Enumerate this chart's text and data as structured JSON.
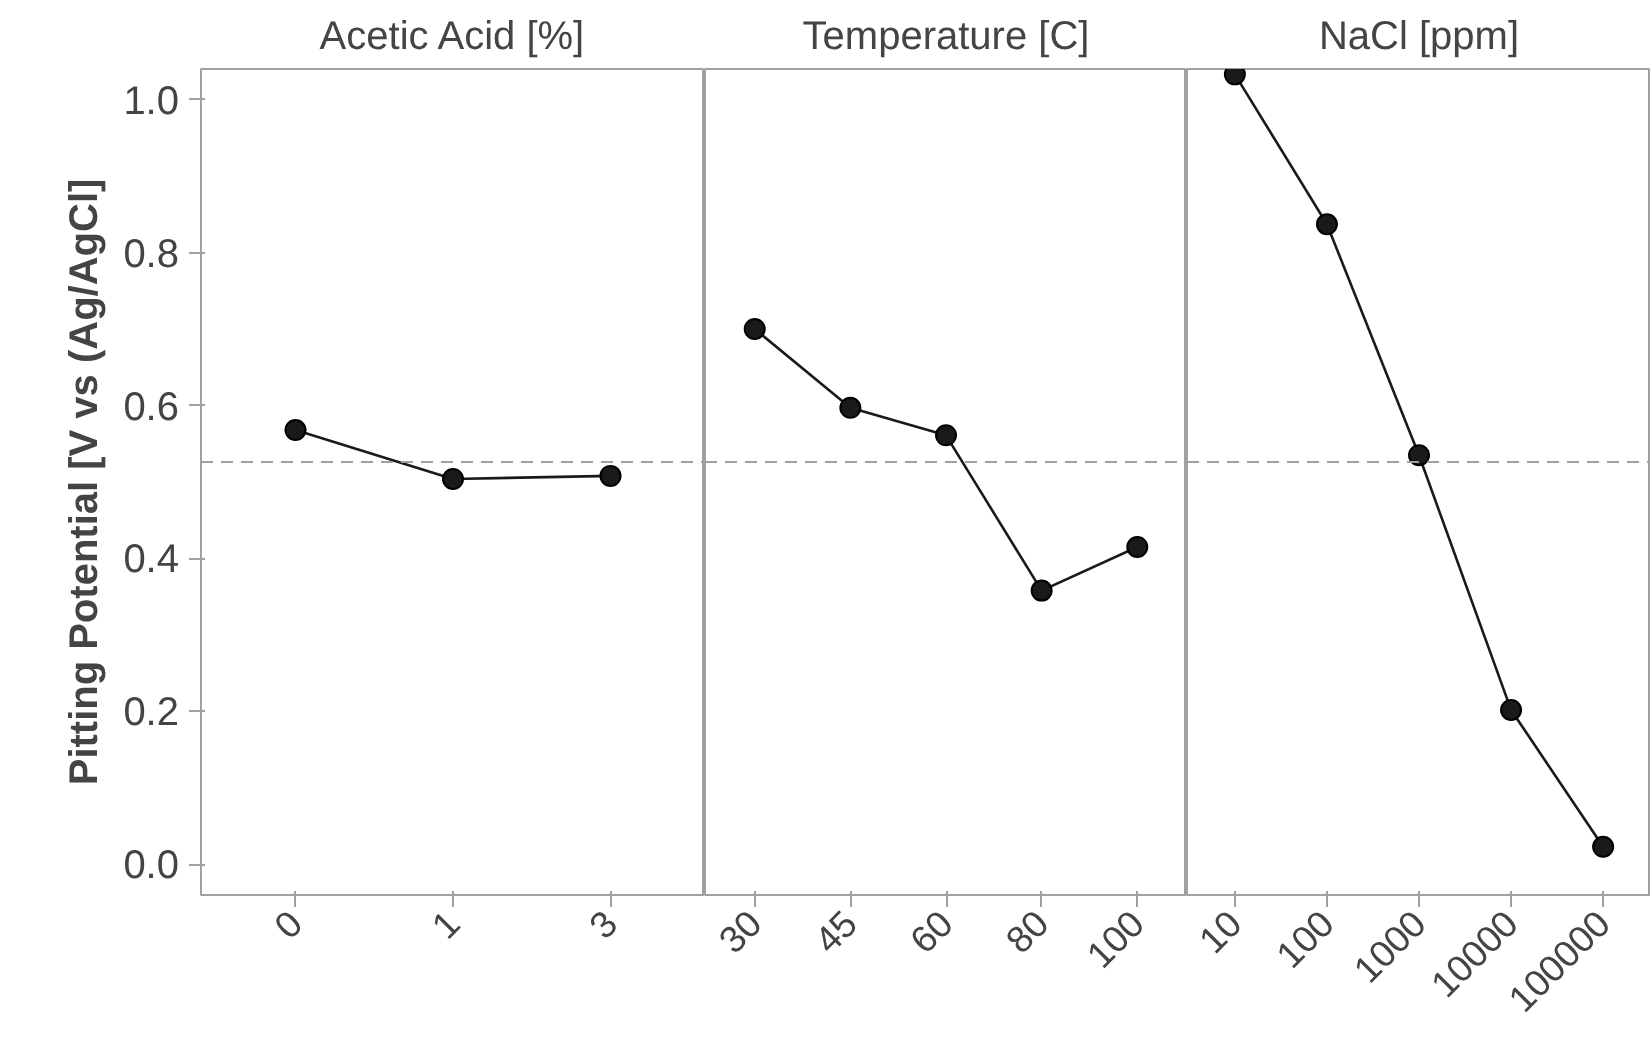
{
  "chart_data": [
    {
      "type": "line",
      "title": "Acetic Acid [%]",
      "ylabel": "Pitting Potential [V vs (Ag/AgCl]",
      "categories": [
        "0",
        "1",
        "3"
      ],
      "series": [
        {
          "color": "#1a1a1a",
          "values": [
            0.568,
            0.504,
            0.508
          ]
        }
      ],
      "ylim": [
        -0.04,
        1.04
      ],
      "yticks": [
        {
          "value": 0,
          "label": "0.0"
        },
        {
          "value": 0.2,
          "label": "0.2"
        },
        {
          "value": 0.4,
          "label": "0.4"
        },
        {
          "value": 0.6,
          "label": "0.6"
        },
        {
          "value": 0.8,
          "label": "0.8"
        },
        {
          "value": 1,
          "label": "1.0"
        }
      ],
      "ref_lines": [
        {
          "axis": "y",
          "value": 0.526,
          "color": "#a0a0a0",
          "line_style": "dashed"
        }
      ],
      "marker": "circle"
    },
    {
      "type": "line",
      "title": "Temperature [C]",
      "categories": [
        "30",
        "45",
        "60",
        "80",
        "100"
      ],
      "series": [
        {
          "color": "#1a1a1a",
          "values": [
            0.7,
            0.597,
            0.561,
            0.358,
            0.415
          ]
        }
      ],
      "ylim": [
        -0.04,
        1.04
      ],
      "tick_labels": "x",
      "ref_lines": [
        {
          "axis": "y",
          "value": 0.526,
          "color": "#a0a0a0",
          "line_style": "dashed"
        }
      ],
      "marker": "circle"
    },
    {
      "type": "line",
      "title": "NaCl [ppm]",
      "categories": [
        "10",
        "100",
        "1000",
        "10000",
        "100000"
      ],
      "series": [
        {
          "color": "#1a1a1a",
          "values": [
            1.033,
            0.837,
            0.535,
            0.202,
            0.023
          ]
        }
      ],
      "ylim": [
        -0.04,
        1.04
      ],
      "tick_labels": "x",
      "ref_lines": [
        {
          "axis": "y",
          "value": 0.526,
          "color": "#a0a0a0",
          "line_style": "dashed"
        }
      ],
      "marker": "circle"
    }
  ]
}
